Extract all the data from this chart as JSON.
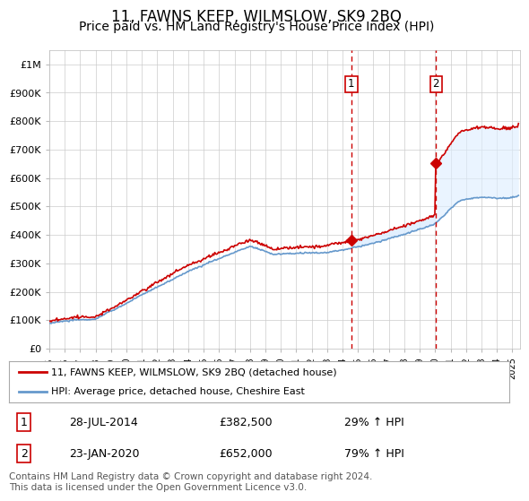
{
  "title": "11, FAWNS KEEP, WILMSLOW, SK9 2BQ",
  "subtitle": "Price paid vs. HM Land Registry's House Price Index (HPI)",
  "title_fontsize": 12,
  "subtitle_fontsize": 10,
  "ylabel_ticks": [
    "£0",
    "£100K",
    "£200K",
    "£300K",
    "£400K",
    "£500K",
    "£600K",
    "£700K",
    "£800K",
    "£900K",
    "£1M"
  ],
  "ytick_values": [
    0,
    100000,
    200000,
    300000,
    400000,
    500000,
    600000,
    700000,
    800000,
    900000,
    1000000
  ],
  "ylim": [
    0,
    1050000
  ],
  "xlim_start": 1995.0,
  "xlim_end": 2025.5,
  "hpi_color": "#6699cc",
  "price_color": "#cc0000",
  "shade_color": "#ddeeff",
  "grid_color": "#cccccc",
  "background_color": "#ffffff",
  "plot_bg_color": "#ffffff",
  "legend_label_price": "11, FAWNS KEEP, WILMSLOW, SK9 2BQ (detached house)",
  "legend_label_hpi": "HPI: Average price, detached house, Cheshire East",
  "transaction1_date": "28-JUL-2014",
  "transaction1_price": 382500,
  "transaction1_pct": "29% ↑ HPI",
  "transaction1_year": 2014.57,
  "transaction2_date": "23-JAN-2020",
  "transaction2_price": 652000,
  "transaction2_pct": "79% ↑ HPI",
  "transaction2_year": 2020.06,
  "vline_color": "#cc0000",
  "marker_color": "#cc0000",
  "footnote": "Contains HM Land Registry data © Crown copyright and database right 2024.\nThis data is licensed under the Open Government Licence v3.0.",
  "footnote_fontsize": 7.5,
  "xtick_years": [
    1995,
    1996,
    1997,
    1998,
    1999,
    2000,
    2001,
    2002,
    2003,
    2004,
    2005,
    2006,
    2007,
    2008,
    2009,
    2010,
    2011,
    2012,
    2013,
    2014,
    2015,
    2016,
    2017,
    2018,
    2019,
    2020,
    2021,
    2022,
    2023,
    2024,
    2025
  ]
}
